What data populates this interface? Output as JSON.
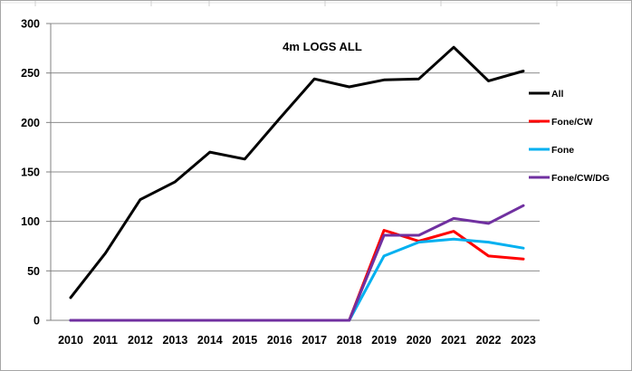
{
  "chart_data": {
    "type": "line",
    "title": "4m LOGS ALL",
    "xlabel": "",
    "ylabel": "",
    "categories": [
      "2010",
      "2011",
      "2012",
      "2013",
      "2014",
      "2015",
      "2016",
      "2017",
      "2018",
      "2019",
      "2020",
      "2021",
      "2022",
      "2023"
    ],
    "ylim": [
      0,
      300
    ],
    "yticks": [
      "0",
      "50",
      "100",
      "150",
      "200",
      "250",
      "300"
    ],
    "grid": "horizontal",
    "legend_position": "right",
    "series": [
      {
        "name": "All",
        "color": "#000000",
        "values": [
          23,
          68,
          122,
          140,
          170,
          163,
          204,
          244,
          236,
          243,
          244,
          276,
          242,
          252
        ]
      },
      {
        "name": "Fone/CW",
        "color": "#ff0000",
        "values": [
          0,
          0,
          0,
          0,
          0,
          0,
          0,
          0,
          0,
          91,
          80,
          90,
          65,
          62
        ]
      },
      {
        "name": "Fone",
        "color": "#00b0f0",
        "values": [
          0,
          0,
          0,
          0,
          0,
          0,
          0,
          0,
          0,
          65,
          79,
          82,
          79,
          73
        ]
      },
      {
        "name": "Fone/CW/DG",
        "color": "#7030a0",
        "values": [
          0,
          0,
          0,
          0,
          0,
          0,
          0,
          0,
          0,
          86,
          86,
          103,
          98,
          116
        ]
      }
    ]
  }
}
